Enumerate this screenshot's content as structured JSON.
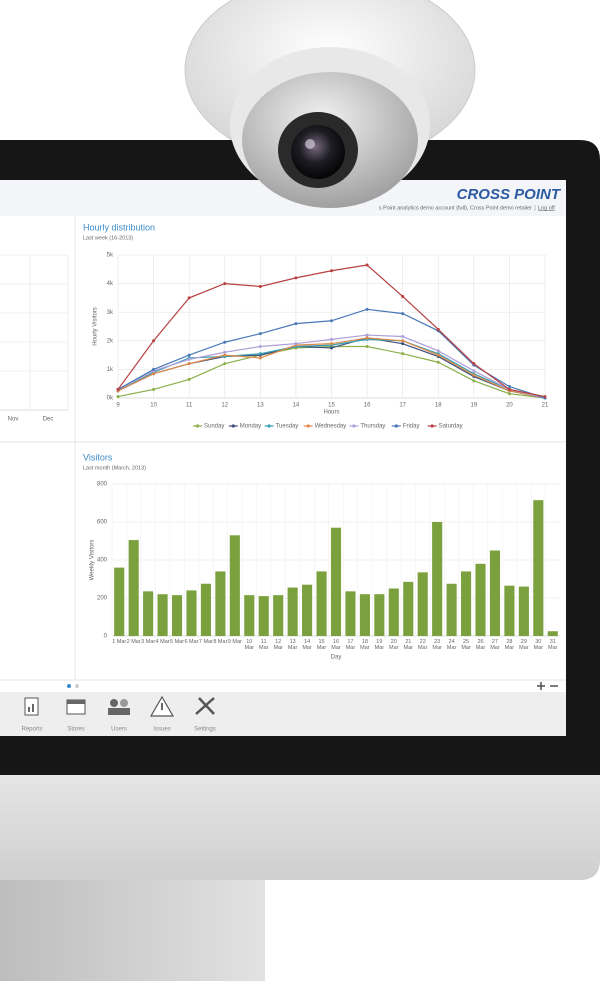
{
  "header": {
    "brand": "CROSS POINT",
    "account": "s Point analytics demo account (full), Cross Point demo retailer",
    "logoff": "Log off"
  },
  "left_panel": {
    "x_labels": [
      "Nov",
      "Dec"
    ]
  },
  "chart_data": [
    {
      "type": "line",
      "title": "Hourly distribution",
      "subtitle": "Last week (16-2013)",
      "x_label": "Hours",
      "y_label": "Hourly Visitors",
      "x": [
        9,
        10,
        11,
        12,
        13,
        14,
        15,
        16,
        17,
        18,
        19,
        20,
        21
      ],
      "xlim": [
        9,
        21
      ],
      "xticks": [
        9,
        10,
        11,
        12,
        13,
        14,
        15,
        16,
        17,
        18,
        19,
        20,
        21
      ],
      "ylim": [
        0,
        5000
      ],
      "yticks": [
        {
          "value": 0,
          "label": "0k"
        },
        {
          "value": 1000,
          "label": "1k"
        },
        {
          "value": 2000,
          "label": "2k"
        },
        {
          "value": 3000,
          "label": "3k"
        },
        {
          "value": 4000,
          "label": "4k"
        },
        {
          "value": 5000,
          "label": "5k"
        }
      ],
      "grid": true,
      "legend": "bottom",
      "series": [
        {
          "name": "Sunday",
          "color": "#8ab04a",
          "values": [
            50,
            300,
            650,
            1200,
            1500,
            1750,
            1800,
            1800,
            1550,
            1250,
            600,
            150,
            0
          ]
        },
        {
          "name": "Monday",
          "color": "#3d4f7a",
          "values": [
            250,
            850,
            1200,
            1450,
            1500,
            1800,
            1750,
            2100,
            1900,
            1450,
            750,
            250,
            0
          ]
        },
        {
          "name": "Tuesday",
          "color": "#3aa0b4",
          "values": [
            250,
            900,
            1400,
            1450,
            1550,
            1800,
            1850,
            2050,
            2000,
            1550,
            850,
            300,
            0
          ]
        },
        {
          "name": "Wednesday",
          "color": "#e08a4a",
          "values": [
            250,
            850,
            1200,
            1500,
            1400,
            1850,
            1900,
            2100,
            2000,
            1500,
            800,
            250,
            0
          ]
        },
        {
          "name": "Thursday",
          "color": "#b0a0d8",
          "values": [
            300,
            950,
            1350,
            1600,
            1800,
            1900,
            2050,
            2200,
            2150,
            1650,
            950,
            300,
            0
          ]
        },
        {
          "name": "Friday",
          "color": "#4a78b8",
          "values": [
            300,
            1000,
            1500,
            1950,
            2250,
            2600,
            2700,
            3100,
            2950,
            2350,
            1150,
            400,
            0
          ]
        },
        {
          "name": "Saturday",
          "color": "#b84040",
          "values": [
            300,
            2000,
            3500,
            4000,
            3900,
            4200,
            4450,
            4650,
            3550,
            2400,
            1200,
            300,
            50
          ]
        }
      ]
    },
    {
      "type": "bar",
      "title": "Visitors",
      "subtitle": "Last month (March, 2013)",
      "x_label": "Day",
      "y_label": "Weekly Visitors",
      "categories": [
        "1 Mar",
        "2 Mar",
        "3 Mar",
        "4 Mar",
        "5 Mar",
        "6 Mar",
        "7 Mar",
        "8 Mar",
        "9 Mar",
        "10 Mar",
        "11 Mar",
        "12 Mar",
        "13 Mar",
        "14 Mar",
        "15 Mar",
        "16 Mar",
        "17 Mar",
        "18 Mar",
        "19 Mar",
        "20 Mar",
        "21 Mar",
        "22 Mar",
        "23 Mar",
        "24 Mar",
        "25 Mar",
        "26 Mar",
        "27 Mar",
        "28 Mar",
        "29 Mar",
        "30 Mar",
        "31 Mar"
      ],
      "values": [
        360,
        505,
        235,
        220,
        215,
        240,
        275,
        340,
        530,
        215,
        210,
        215,
        255,
        270,
        340,
        570,
        235,
        220,
        220,
        250,
        285,
        335,
        600,
        275,
        340,
        380,
        450,
        265,
        260,
        715,
        25
      ],
      "color": "#7ba13f",
      "ylim": [
        0,
        800
      ],
      "yticks": [
        0,
        200,
        400,
        600,
        800
      ],
      "grid": true
    }
  ],
  "toolbar": {
    "items": [
      "Reports",
      "Stores",
      "Users",
      "Issues",
      "Settings"
    ]
  }
}
